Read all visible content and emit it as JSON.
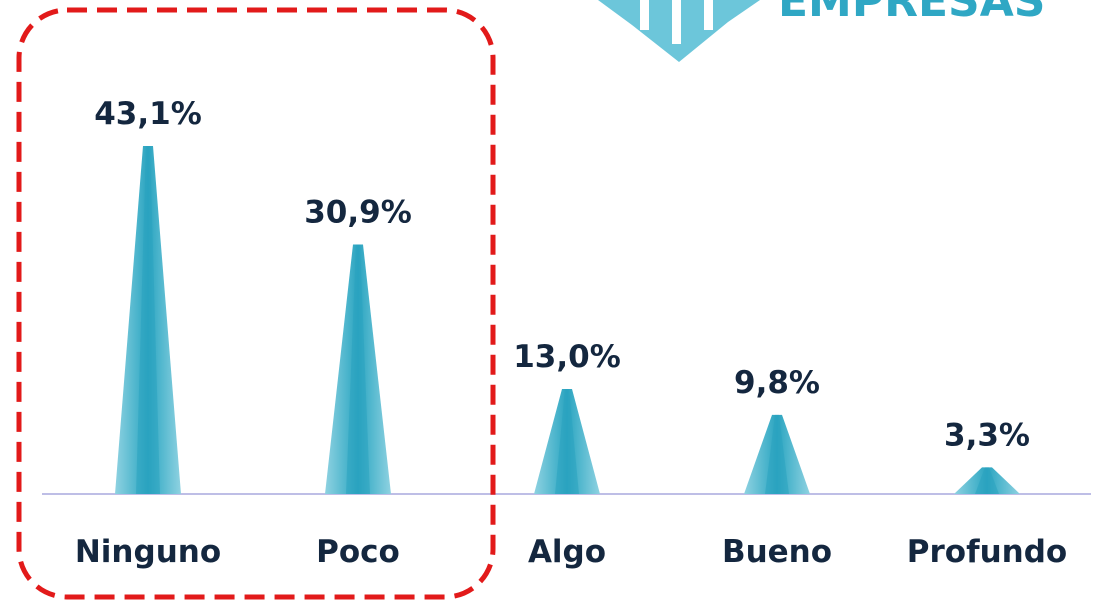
{
  "brand": {
    "text": "EMPRESAS",
    "color": "#2fa7c4",
    "emblem_color": "#6cc6da"
  },
  "colors": {
    "bar_dark": "#2aa3bf",
    "bar_light": "#8fd2e1",
    "label": "#14273f",
    "baseline": "#a9a9de",
    "highlight": "#e21a1a"
  },
  "highlight": {
    "style": "dashed rounded box",
    "categories": [
      "Ninguno",
      "Poco"
    ]
  },
  "chart_data": {
    "type": "bar",
    "bar_shape": "cone",
    "categories": [
      "Ninguno",
      "Poco",
      "Algo",
      "Bueno",
      "Profundo"
    ],
    "values": [
      43.1,
      30.9,
      13.0,
      9.8,
      3.3
    ],
    "value_labels": [
      "43,1%",
      "30,9%",
      "13,0%",
      "9,8%",
      "3,3%"
    ],
    "title": "",
    "xlabel": "",
    "ylabel": "",
    "ylim": [
      0,
      45
    ],
    "grid": false,
    "legend": "none"
  }
}
